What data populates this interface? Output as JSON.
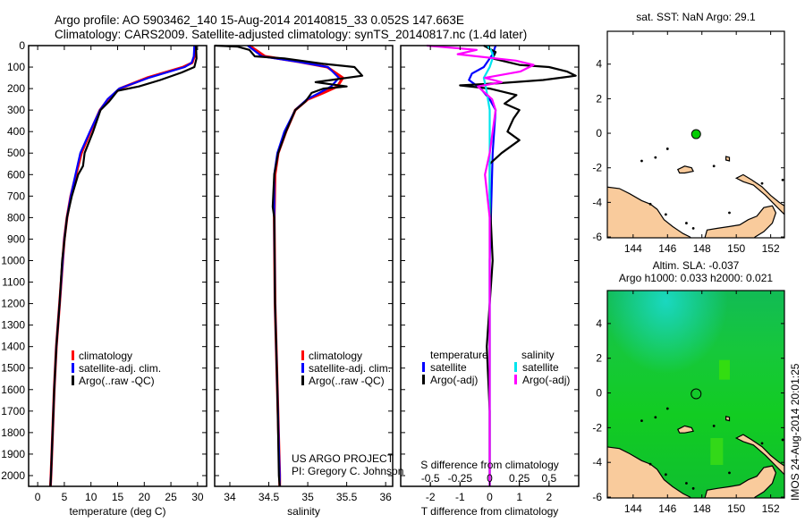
{
  "title": {
    "line1": "Argo profile: AO 5903462_140 15-Aug-2014 20140815_33 0.052S 147.663E",
    "line2": "Climatology: CARS2009. Satellite-adjusted climatology: synTS_20140817.nc (1.4d later)"
  },
  "colors": {
    "climatology": "#ff0000",
    "satellite": "#0000ff",
    "argo": "#000000",
    "sal_satellite": "#00e5ee",
    "sal_argo": "#ff00ff",
    "land": "#f9cb9c",
    "argo_dot": "#00cc00"
  },
  "chart_data": [
    {
      "type": "line",
      "id": "temperature",
      "xlabel": "temperature (deg C)",
      "ylabel": "",
      "xlim": [
        -1.7,
        31.7
      ],
      "ylim": [
        2050,
        0
      ],
      "xticks": [
        "0",
        "5",
        "10",
        "15",
        "20",
        "25",
        "30"
      ],
      "yticks": [
        "0",
        "100",
        "200",
        "300",
        "400",
        "500",
        "600",
        "700",
        "800",
        "900",
        "1000",
        "1100",
        "1200",
        "1300",
        "1400",
        "1500",
        "1600",
        "1700",
        "1800",
        "1900",
        "2000"
      ],
      "legend": [
        "climatology",
        "satellite-adj. clim.",
        "Argo(..raw -QC)"
      ],
      "series": [
        {
          "name": "climatology",
          "color": "#ff0000",
          "depth": [
            0,
            50,
            80,
            100,
            150,
            200,
            250,
            300,
            400,
            500,
            600,
            700,
            800,
            900,
            1000,
            1200,
            1400,
            1600,
            1800,
            2000,
            2050
          ],
          "values": [
            29.5,
            29.4,
            29.0,
            27.3,
            20.5,
            15.4,
            13.2,
            11.7,
            9.9,
            8.2,
            7.2,
            6.2,
            5.5,
            5.0,
            4.7,
            4.1,
            3.5,
            3.1,
            2.8,
            2.5,
            2.4
          ]
        },
        {
          "name": "satellite-adj. clim.",
          "color": "#0000ff",
          "depth": [
            0,
            50,
            80,
            100,
            150,
            200,
            250,
            300,
            400,
            500,
            600,
            700,
            800,
            900,
            1000,
            1200,
            1400,
            1600,
            1800,
            2000,
            2050
          ],
          "values": [
            29.4,
            29.3,
            28.9,
            27.6,
            20.8,
            15.3,
            13.1,
            11.7,
            9.8,
            8.0,
            7.1,
            6.2,
            5.5,
            5.0,
            4.7,
            4.1,
            3.5,
            3.1,
            2.8,
            2.5,
            2.4
          ]
        },
        {
          "name": "Argo(..raw -QC)",
          "color": "#000000",
          "depth": [
            0,
            60,
            100,
            125,
            160,
            190,
            210,
            260,
            300,
            400,
            500,
            560,
            600,
            700,
            800,
            1000,
            1200,
            1400,
            1600,
            1800,
            2000,
            2050
          ],
          "values": [
            29.7,
            29.8,
            29.4,
            27.0,
            23.0,
            19.0,
            15.0,
            13.4,
            11.8,
            10.4,
            8.8,
            8.5,
            7.6,
            6.4,
            5.5,
            4.6,
            4.1,
            3.5,
            3.1,
            2.8,
            2.5,
            2.4
          ]
        }
      ]
    },
    {
      "type": "line",
      "id": "salinity",
      "xlabel": "salinity",
      "xlim": [
        33.805,
        36.09
      ],
      "ylim": [
        2050,
        0
      ],
      "xticks": [
        "34",
        "34.5",
        "35",
        "35.5",
        "36"
      ],
      "legend": [
        "climatology",
        "satellite-adj. clim.",
        "Argo(..raw -QC)"
      ],
      "credit": [
        "US ARGO PROJECT",
        "PI: Gregory C. Johnson"
      ],
      "series": [
        {
          "name": "climatology",
          "color": "#ff0000",
          "depth": [
            0,
            50,
            75,
            100,
            150,
            190,
            220,
            250,
            300,
            400,
            500,
            600,
            800,
            1200,
            1600,
            2000,
            2050
          ],
          "values": [
            34.25,
            34.45,
            34.88,
            35.25,
            35.45,
            35.38,
            35.2,
            35.0,
            34.84,
            34.72,
            34.62,
            34.58,
            34.57,
            34.58,
            34.61,
            34.64,
            34.64
          ]
        },
        {
          "name": "satellite-adj. clim.",
          "color": "#0000ff",
          "depth": [
            0,
            50,
            75,
            100,
            150,
            190,
            220,
            250,
            300,
            400,
            500,
            600,
            800,
            1200,
            1600,
            2000,
            2050
          ],
          "values": [
            34.23,
            34.41,
            34.87,
            35.26,
            35.4,
            35.3,
            35.15,
            34.99,
            34.84,
            34.7,
            34.61,
            34.57,
            34.57,
            34.58,
            34.61,
            34.64,
            34.64
          ]
        },
        {
          "name": "Argo(..raw -QC)",
          "color": "#000000",
          "depth": [
            0,
            5,
            20,
            50,
            60,
            85,
            100,
            140,
            160,
            170,
            190,
            200,
            220,
            260,
            300,
            400,
            500,
            600,
            750,
            800,
            1200,
            1600,
            2000,
            2050
          ],
          "values": [
            33.81,
            34.1,
            34.25,
            34.32,
            34.7,
            35.2,
            35.6,
            35.7,
            35.3,
            35.1,
            35.5,
            35.2,
            35.05,
            34.97,
            34.84,
            34.72,
            34.62,
            34.57,
            34.55,
            34.57,
            34.58,
            34.61,
            34.63,
            34.64
          ]
        }
      ]
    },
    {
      "type": "line",
      "id": "difference",
      "xlabel": "T difference from climatology",
      "xlabel2": "S difference from climatology",
      "xlim": [
        -3,
        3
      ],
      "ylim": [
        2050,
        0
      ],
      "xticks": [
        "-2",
        "-1",
        "0",
        "1",
        "2"
      ],
      "xticks2": [
        "-0.5",
        "-0.25",
        "0",
        "0.25",
        "0.5"
      ],
      "legend_temperature": {
        "header": "temperature",
        "items": [
          "satellite",
          "Argo(-adj)"
        ]
      },
      "legend_salinity": {
        "header": "salinity",
        "items": [
          "satellite",
          "Argo(-adj)"
        ]
      },
      "series": [
        {
          "name": "temperature satellite",
          "color": "#0000ff",
          "units": "degC",
          "depth": [
            0,
            40,
            100,
            130,
            160,
            200,
            250,
            300,
            500,
            1000,
            2050
          ],
          "values": [
            0.2,
            0.1,
            -0.2,
            -0.6,
            -0.7,
            -0.3,
            0.0,
            0.2,
            0.1,
            0.0,
            0.0
          ]
        },
        {
          "name": "temperature Argo(-adj)",
          "color": "#000000",
          "units": "degC",
          "depth": [
            0,
            30,
            60,
            90,
            100,
            120,
            140,
            160,
            175,
            185,
            200,
            230,
            270,
            300,
            340,
            400,
            440,
            500,
            550,
            700,
            1000,
            1400,
            1700,
            2050
          ],
          "values": [
            -0.2,
            0.2,
            0.1,
            1.0,
            2.0,
            2.6,
            2.9,
            1.8,
            0.3,
            -1.0,
            0.0,
            0.9,
            0.5,
            1.0,
            0.8,
            0.6,
            1.0,
            0.4,
            0.0,
            0.0,
            0.1,
            -0.1,
            0.0,
            0.0
          ]
        },
        {
          "name": "salinity satellite",
          "color": "#00e5ee",
          "units": "psu",
          "depth": [
            0,
            20,
            50,
            100,
            150,
            200,
            300,
            600,
            2050
          ],
          "values": [
            -0.02,
            0.01,
            0.03,
            0.0,
            -0.05,
            -0.03,
            0.0,
            0.0,
            0.0
          ]
        },
        {
          "name": "salinity Argo(-adj)",
          "color": "#ff00ff",
          "units": "psu",
          "depth": [
            0,
            20,
            40,
            70,
            90,
            120,
            150,
            170,
            190,
            250,
            300,
            500,
            600,
            800,
            2050
          ],
          "values": [
            -0.53,
            -0.11,
            -0.27,
            0.22,
            0.37,
            0.26,
            -0.04,
            0.1,
            -0.1,
            0.02,
            0.05,
            0.0,
            -0.04,
            0.0,
            0.0
          ]
        }
      ]
    }
  ],
  "maps": {
    "sst": {
      "title": "sat. SST: NaN Argo: 29.1",
      "lon_ticks": [
        "144",
        "146",
        "148",
        "150",
        "152"
      ],
      "lat_ticks": [
        "4",
        "2",
        "0",
        "-2",
        "-4",
        "-6"
      ],
      "argo_lon": 147.663,
      "argo_lat": -0.052
    },
    "sla": {
      "title1": "Altim. SLA: -0.037",
      "title2": "Argo h1000: 0.033 h2000: 0.021",
      "lon_ticks": [
        "144",
        "146",
        "148",
        "150",
        "152"
      ],
      "lat_ticks": [
        "4",
        "2",
        "0",
        "-2",
        "-4",
        "-6"
      ],
      "argo_lon": 147.663,
      "argo_lat": -0.052
    },
    "lon_range": [
      142.5,
      152.8
    ],
    "lat_range": [
      -6.05,
      5.9
    ]
  },
  "stamp": "IMOS 24-Aug-2014 20:01:25"
}
